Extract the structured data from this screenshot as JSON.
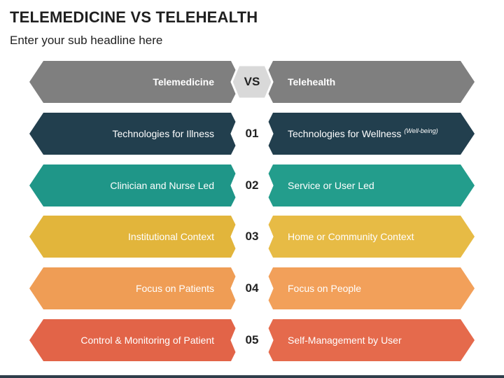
{
  "title": "TELEMEDICINE VS TELEHEALTH",
  "subtitle": "Enter your sub headline here",
  "rows": [
    {
      "num": "VS",
      "left": "Telemedicine",
      "right": "Telehealth",
      "right_note": "",
      "left_color": "#7f7f7f",
      "right_color": "#7f7f7f",
      "center_color": "#d9d9d9"
    },
    {
      "num": "01",
      "left": "Technologies for Illness",
      "right": "Technologies for Wellness",
      "right_note": "(Well-being)",
      "left_color": "#223f4e",
      "right_color": "#223f4e",
      "center_color": "#ffffff"
    },
    {
      "num": "02",
      "left": "Clinician and Nurse Led",
      "right": "Service or User Led",
      "right_note": "",
      "left_color": "#1f9688",
      "right_color": "#239d8c",
      "center_color": "#ffffff"
    },
    {
      "num": "03",
      "left": "Institutional Context",
      "right": "Home or Community Context",
      "right_note": "",
      "left_color": "#e2b53b",
      "right_color": "#e7bb45",
      "center_color": "#ffffff"
    },
    {
      "num": "04",
      "left": "Focus on Patients",
      "right": "Focus on People",
      "right_note": "",
      "left_color": "#ef9d55",
      "right_color": "#f2a05a",
      "center_color": "#ffffff"
    },
    {
      "num": "05",
      "left": "Control & Monitoring of Patient",
      "right": "Self-Management by User",
      "right_note": "",
      "left_color": "#e26448",
      "right_color": "#e56a4c",
      "center_color": "#ffffff"
    }
  ]
}
